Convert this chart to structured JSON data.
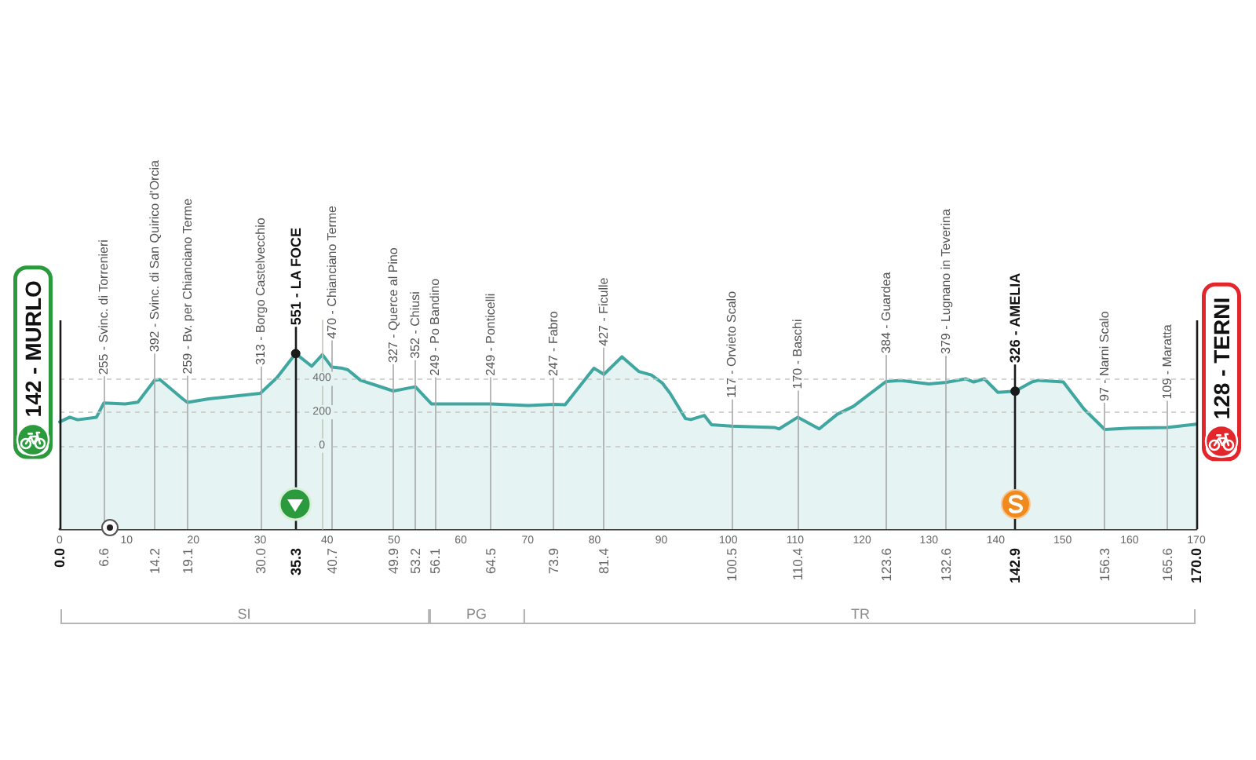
{
  "chart_data": {
    "type": "area",
    "x": [
      0,
      1.5,
      2.7,
      5.5,
      6.6,
      9.8,
      11.7,
      14.2,
      15.0,
      18.4,
      19.1,
      22.3,
      26.2,
      30.0,
      32.5,
      35.3,
      37.7,
      39.3,
      40.7,
      42.3,
      43.1,
      45.0,
      47.4,
      49.9,
      52.1,
      53.2,
      55.6,
      56.1,
      59.9,
      64.5,
      70.1,
      73.9,
      75.6,
      79.9,
      81.4,
      84.1,
      86.6,
      88.5,
      90.1,
      91.3,
      93.6,
      94.4,
      96.4,
      97.5,
      100.5,
      106.9,
      107.6,
      110.4,
      113.6,
      116.3,
      118.7,
      123.6,
      125.7,
      130.0,
      132.6,
      135.5,
      136.7,
      138.3,
      140.3,
      142.9,
      145.4,
      146.4,
      150.1,
      153.2,
      156.3,
      160.2,
      165.6,
      170.0
    ],
    "values": [
      142,
      170,
      155,
      170,
      255,
      250,
      260,
      392,
      395,
      280,
      259,
      280,
      297,
      313,
      407,
      551,
      475,
      545,
      470,
      463,
      454,
      391,
      360,
      327,
      344,
      352,
      250,
      249,
      250,
      249,
      240,
      247,
      245,
      463,
      427,
      532,
      444,
      423,
      376,
      313,
      162,
      156,
      181,
      125,
      117,
      109,
      100,
      170,
      100,
      188,
      235,
      384,
      391,
      369,
      379,
      400,
      381,
      400,
      319,
      326,
      381,
      391,
      381,
      219,
      97,
      105,
      109,
      128
    ],
    "color": "#40a6a0",
    "xlim": [
      0,
      170
    ],
    "xticks": [
      0,
      10,
      20,
      30,
      40,
      50,
      60,
      70,
      80,
      90,
      100,
      110,
      120,
      130,
      140,
      150,
      160,
      170
    ],
    "ylim": [
      -500,
      750
    ],
    "yticks": [
      0,
      200,
      400
    ],
    "grid": "y",
    "ref_lines": [
      {
        "axis": "x",
        "value": 0,
        "label": "142 - MURLO",
        "color": "#1a1a1a"
      },
      {
        "axis": "x",
        "value": 6.6,
        "label": "255 - Svinc. di Torrenieri",
        "color": "#a8a8a8"
      },
      {
        "axis": "x",
        "value": 14.2,
        "label": "392 - Svinc. di San Quirico d'Orcia",
        "color": "#a8a8a8"
      },
      {
        "axis": "x",
        "value": 19.1,
        "label": "259 - Bv. per Chianciano Terme",
        "color": "#a8a8a8"
      },
      {
        "axis": "x",
        "value": 30.0,
        "label": "313 - Borgo Castelvecchio",
        "color": "#a8a8a8"
      },
      {
        "axis": "x",
        "value": 35.3,
        "label": "551 - LA FOCE",
        "color": "#1a1a1a"
      },
      {
        "axis": "x",
        "value": 40.7,
        "label": "470 - Chianciano Terme",
        "color": "#a8a8a8"
      },
      {
        "axis": "x",
        "value": 49.9,
        "label": "327 - Querce al Pino",
        "color": "#a8a8a8"
      },
      {
        "axis": "x",
        "value": 53.2,
        "label": "352 - Chiusi",
        "color": "#a8a8a8"
      },
      {
        "axis": "x",
        "value": 56.1,
        "label": "249 - Po Bandino",
        "color": "#a8a8a8"
      },
      {
        "axis": "x",
        "value": 64.5,
        "label": "249 - Ponticelli",
        "color": "#a8a8a8"
      },
      {
        "axis": "x",
        "value": 73.9,
        "label": "247 - Fabro",
        "color": "#a8a8a8"
      },
      {
        "axis": "x",
        "value": 81.4,
        "label": "427 - Ficulle",
        "color": "#a8a8a8"
      },
      {
        "axis": "x",
        "value": 100.5,
        "label": "117 - Orvieto Scalo",
        "color": "#a8a8a8"
      },
      {
        "axis": "x",
        "value": 110.4,
        "label": "170 - Baschi",
        "color": "#a8a8a8"
      },
      {
        "axis": "x",
        "value": 123.6,
        "label": "384 - Guardea",
        "color": "#a8a8a8"
      },
      {
        "axis": "x",
        "value": 132.6,
        "label": "379 - Lugnano in Teverina",
        "color": "#a8a8a8"
      },
      {
        "axis": "x",
        "value": 142.9,
        "label": "326 - AMELIA",
        "color": "#1a1a1a"
      },
      {
        "axis": "x",
        "value": 156.3,
        "label": "97 - Narni Scalo",
        "color": "#a8a8a8"
      },
      {
        "axis": "x",
        "value": 165.6,
        "label": "109 - Maratta",
        "color": "#a8a8a8"
      },
      {
        "axis": "x",
        "value": 170,
        "label": "128 - TERNI",
        "color": "#1a1a1a"
      }
    ],
    "annotations": [
      "0.0",
      "6.6",
      "14.2",
      "19.1",
      "30.0",
      "35.3",
      "40.7",
      "49.9",
      "53.2",
      "56.1",
      "64.5",
      "73.9",
      "81.4",
      "100.5",
      "110.4",
      "123.6",
      "132.6",
      "142.9",
      "156.3",
      "165.6",
      "170.0",
      "SI",
      "PG",
      "TR"
    ],
    "bands": [
      {
        "axis": "y",
        "from": -500,
        "to": 0,
        "color": "#e6f3f3"
      }
    ]
  }
}
